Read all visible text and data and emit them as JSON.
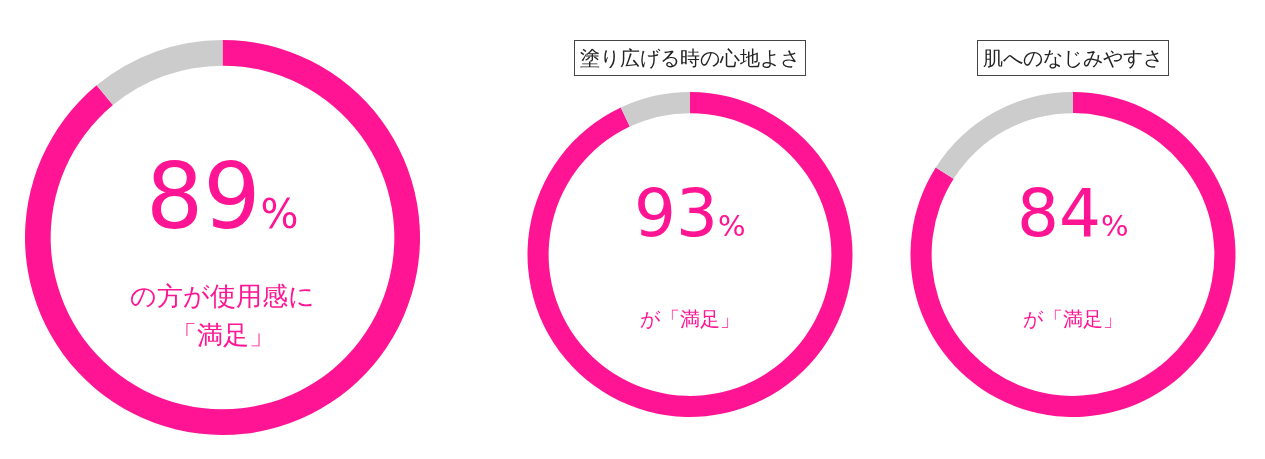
{
  "chart_data": [
    {
      "type": "donut",
      "categories": [
        null,
        null
      ],
      "values": [
        89,
        11
      ],
      "colors": [
        "#ff1493",
        "#cccccc"
      ],
      "value_labels": [
        "89%",
        null
      ],
      "annotations": [
        "の方が使用感に",
        "「満足」"
      ]
    },
    {
      "type": "donut",
      "title": "塗り広げる時の心地よさ",
      "categories": [
        null,
        null
      ],
      "values": [
        93,
        7
      ],
      "colors": [
        "#ff1493",
        "#cccccc"
      ],
      "value_labels": [
        "93%",
        null
      ],
      "annotations": [
        "が「満足」"
      ]
    },
    {
      "type": "donut",
      "title": "肌へのなじみやすさ",
      "categories": [
        null,
        null
      ],
      "values": [
        84,
        16
      ],
      "colors": [
        "#ff1493",
        "#cccccc"
      ],
      "value_labels": [
        "84%",
        null
      ],
      "annotations": [
        "が「満足」"
      ]
    }
  ]
}
